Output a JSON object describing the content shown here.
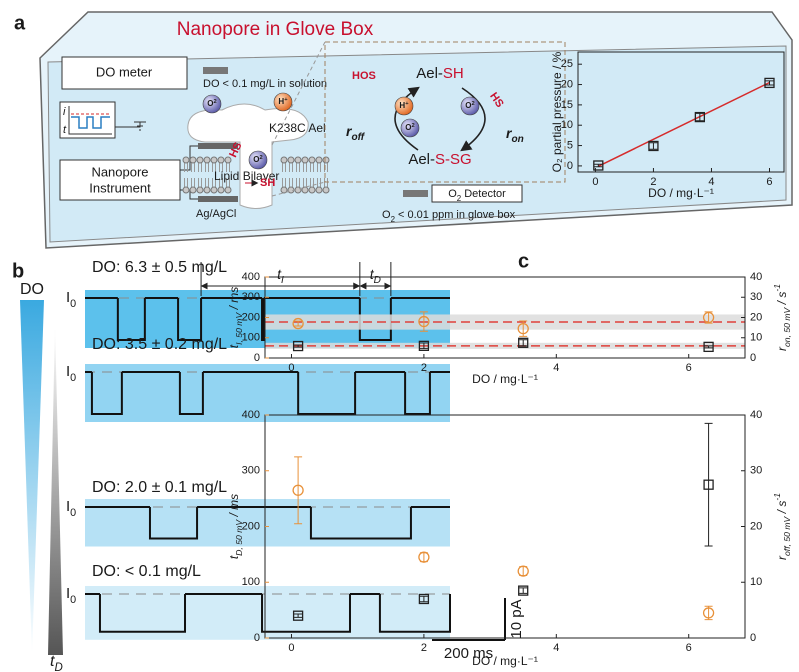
{
  "panel_labels": [
    "a",
    "b",
    "c"
  ],
  "diagram": {
    "title": "Nanopore in Glove Box",
    "do_meter": "DO meter",
    "do_in_solution": "DO < 0.1 mg/L in solution",
    "current_axes": [
      "i",
      "t"
    ],
    "instrument": [
      "Nanopore",
      "Instrument"
    ],
    "ag_agcl": "Ag/AgCl",
    "lipid_bilayer": "Lipid Bilayer",
    "protein": "K238C Ael",
    "hs": "HS",
    "sh": "SH",
    "h_plus": [
      "H",
      "+"
    ],
    "o2": [
      "O",
      "2"
    ],
    "ael_sh": [
      "Ael-",
      "SH"
    ],
    "ael_ssg": [
      "Ael-",
      "S-SG"
    ],
    "hos": "HOS",
    "r_off": [
      "r",
      "off"
    ],
    "r_on": [
      "r",
      "on"
    ],
    "o2_detector": [
      "O",
      "2",
      " Detector"
    ],
    "o2_in_glove_box": [
      "O",
      "2",
      " < 0.01 ppm in glove box"
    ]
  },
  "gradient_labels": {
    "do": "DO"
  },
  "chart_data": [
    {
      "type": "scatter",
      "x_label": "DO / mg·L⁻¹",
      "y_label": "O₂ partial pressure / %",
      "xlim": [
        -0.6,
        6.5
      ],
      "xticks": [
        0,
        2,
        4,
        6
      ],
      "ylim": [
        -1.5,
        28
      ],
      "yticks": [
        0,
        5,
        10,
        15,
        20,
        25
      ],
      "series": [
        {
          "color": "#222222",
          "marker": "square",
          "x": [
            0.1,
            2,
            3.6,
            6
          ],
          "values": [
            0.1,
            4.9,
            12,
            20.4
          ],
          "errors": [
            0.3,
            0.8,
            0.9,
            0.5
          ]
        }
      ],
      "fit": {
        "color": "#d62b2b",
        "x": [
          0.1,
          6
        ],
        "values": [
          -0.1,
          20.5
        ]
      }
    },
    {
      "type": "trace",
      "xlim": [
        0,
        1000
      ],
      "baseline_label": [
        "I",
        "0"
      ],
      "t_i_label": [
        "t",
        "I"
      ],
      "t_d_label": [
        "t",
        "D"
      ],
      "scale_bar": {
        "time": {
          "value": 200,
          "label": "200 ms"
        },
        "current": {
          "value": 10,
          "label": "10 pA"
        }
      },
      "series": [
        {
          "name": "DO: 6.3 ± 0.5 mg/L",
          "depth": 10,
          "blocks": [
            [
              90,
              164
            ],
            [
              255,
              318
            ],
            [
              485,
              490
            ],
            [
              753,
              838
            ]
          ]
        },
        {
          "name": "DO: 3.5 ± 0.2 mg/L",
          "depth": 10,
          "blocks": [
            [
              19,
              101
            ],
            [
              260,
              323
            ],
            [
              584,
              740
            ],
            [
              877,
              945
            ]
          ]
        },
        {
          "name": "DO: 2.0 ± 0.1 mg/L",
          "depth": 7.5,
          "blocks": [
            [
              178,
              307
            ],
            [
              619,
              893
            ]
          ]
        },
        {
          "name": "DO: < 0.1 mg/L",
          "depth": 9,
          "blocks": [
            [
              41,
              274
            ],
            [
              485,
              726
            ],
            [
              808,
              1000
            ]
          ]
        }
      ]
    },
    {
      "type": "scatter",
      "x_label": "DO / mg·L⁻¹",
      "y_label": [
        "t",
        "I, 50 mV",
        " / ms"
      ],
      "y2_label": [
        "r",
        "on, 50 mV",
        " / s",
        "-1"
      ],
      "xlim": [
        -0.4,
        6.85
      ],
      "xticks": [
        0,
        2,
        4,
        6
      ],
      "ylim": [
        0,
        400
      ],
      "yticks": [
        0,
        100,
        200,
        300,
        400
      ],
      "y2lim": [
        0,
        40
      ],
      "y2ticks": [
        0,
        10,
        20,
        30,
        40
      ],
      "series": [
        {
          "color": "#e8913a",
          "marker": "circle",
          "x": [
            0.1,
            2,
            3.5,
            6.3
          ],
          "values": [
            170,
            180,
            145,
            200
          ],
          "errors": [
            12,
            48,
            38,
            28
          ]
        },
        {
          "color": "#222222",
          "marker": "square",
          "axis": "y2",
          "x": [
            0.1,
            2,
            3.5,
            6.3
          ],
          "values": [
            5.9,
            6,
            7.5,
            5.5
          ],
          "errors": [
            0.5,
            1.4,
            1.5,
            0.5
          ]
        }
      ],
      "bands": [
        {
          "axis": "y",
          "value": 178,
          "range": [
            140,
            215
          ]
        },
        {
          "axis": "y2",
          "value": 6,
          "range": [
            4.5,
            7.5
          ]
        }
      ],
      "band_color": "#dcdcdc",
      "line_color": "#e0403a"
    },
    {
      "type": "scatter",
      "x_label": "DO / mg·L⁻¹",
      "y_label": [
        "t",
        "D, 50 mV",
        " / ms"
      ],
      "y2_label": [
        "r",
        "off, 50 mV",
        " / s",
        "-1"
      ],
      "xlim": [
        -0.4,
        6.85
      ],
      "xticks": [
        0,
        2,
        4,
        6
      ],
      "ylim": [
        0,
        400
      ],
      "yticks": [
        0,
        100,
        200,
        300,
        400
      ],
      "y2lim": [
        0,
        40
      ],
      "y2ticks": [
        0,
        10,
        20,
        30,
        40
      ],
      "series": [
        {
          "color": "#e8913a",
          "marker": "circle",
          "x": [
            0.1,
            2,
            3.5,
            6.3
          ],
          "values": [
            265,
            145,
            120,
            45
          ],
          "errors": [
            60,
            8,
            8,
            12
          ]
        },
        {
          "color": "#222222",
          "marker": "square",
          "axis": "y2",
          "x": [
            0.1,
            2,
            3.5,
            6.3
          ],
          "values": [
            4,
            7,
            8.5,
            27.5
          ],
          "errors": [
            0.3,
            0.5,
            0.5,
            11
          ]
        }
      ]
    }
  ]
}
